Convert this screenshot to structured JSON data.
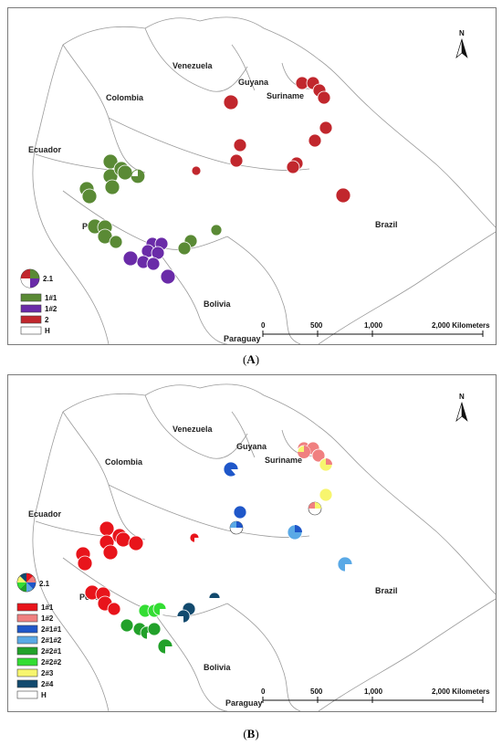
{
  "panel_a": {
    "caption_letter": "A",
    "countries": {
      "venezuela": "Venezuela",
      "guyana": "Guyana",
      "suriname": "Suriname",
      "colombia": "Colombia",
      "ecuador": "Ecuador",
      "peru": "Peru",
      "brazil": "Brazil",
      "bolivia": "Bolivia",
      "paraguay": "Paraguay"
    },
    "scale": {
      "t0": "0",
      "t1": "500",
      "t2": "1,000",
      "t3": "2,000 Kilometers"
    },
    "north": "N",
    "pie_key_label": "2.1",
    "legend": [
      {
        "label": "1#1",
        "color": "#5a8a35"
      },
      {
        "label": "1#2",
        "color": "#6a2ba8"
      },
      {
        "label": "2",
        "color": "#c1272d"
      },
      {
        "label": "H",
        "color": "#ffffff"
      }
    ]
  },
  "panel_b": {
    "caption_letter": "B",
    "countries": {
      "venezuela": "Venezuela",
      "guyana": "Guyana",
      "suriname": "Suriname",
      "colombia": "Colombia",
      "ecuador": "Ecuador",
      "peru": "Peru",
      "brazil": "Brazil",
      "bolivia": "Bolivia",
      "paraguay": "Paraguay"
    },
    "scale": {
      "t0": "0",
      "t1": "500",
      "t2": "1,000",
      "t3": "2,000 Kilometers"
    },
    "north": "N",
    "pie_key_label": "2.1",
    "legend": [
      {
        "label": "1#1",
        "color": "#e8141b"
      },
      {
        "label": "1#2",
        "color": "#f08080"
      },
      {
        "label": "2#1#1",
        "color": "#1f57c9"
      },
      {
        "label": "2#1#2",
        "color": "#5aa9e6"
      },
      {
        "label": "2#2#1",
        "color": "#22a12a"
      },
      {
        "label": "2#2#2",
        "color": "#33dd33"
      },
      {
        "label": "2#3",
        "color": "#f7f56e"
      },
      {
        "label": "2#4",
        "color": "#124a6e"
      },
      {
        "label": "H",
        "color": "#ffffff"
      }
    ]
  }
}
